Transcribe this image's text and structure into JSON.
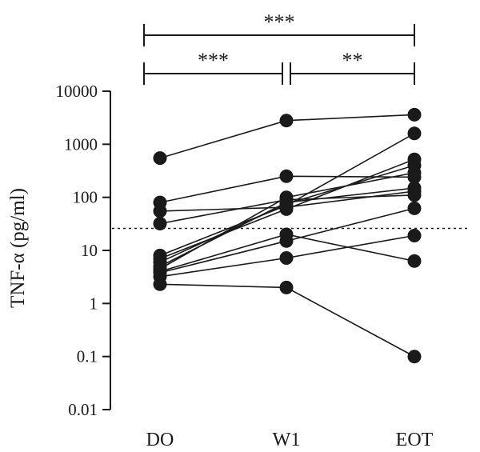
{
  "chart_data": {
    "type": "line",
    "scale": "log",
    "categories": [
      "DO",
      "W1",
      "EOT"
    ],
    "ylabel": "TNF-α (pg/ml)",
    "ylim": [
      0.01,
      10000
    ],
    "yticks": [
      "0.01",
      "0.1",
      "1",
      "10",
      "100",
      "1000",
      "10000"
    ],
    "yticks_values": [
      0.01,
      0.1,
      1,
      10,
      100,
      1000,
      10000
    ],
    "threshold": 26,
    "grid": false,
    "series": [
      {
        "values": [
          550,
          2800,
          3600
        ]
      },
      {
        "values": [
          80,
          250,
          240
        ]
      },
      {
        "values": [
          55,
          65,
          130
        ]
      },
      {
        "values": [
          32,
          90,
          110
        ]
      },
      {
        "values": [
          8,
          70,
          1600
        ]
      },
      {
        "values": [
          7,
          60,
          520
        ]
      },
      {
        "values": [
          6,
          75,
          400
        ]
      },
      {
        "values": [
          5,
          80,
          150
        ]
      },
      {
        "values": [
          4.5,
          100,
          290
        ]
      },
      {
        "values": [
          4,
          20,
          6.3
        ]
      },
      {
        "values": [
          3.8,
          15,
          62
        ]
      },
      {
        "values": [
          3.2,
          7.2,
          19
        ]
      },
      {
        "values": [
          2.3,
          2,
          0.1
        ]
      }
    ],
    "significance": [
      {
        "from": 0,
        "to": 2,
        "label": "***"
      },
      {
        "from": 0,
        "to": 1,
        "label": "***"
      },
      {
        "from": 1,
        "to": 2,
        "label": "**"
      }
    ]
  }
}
